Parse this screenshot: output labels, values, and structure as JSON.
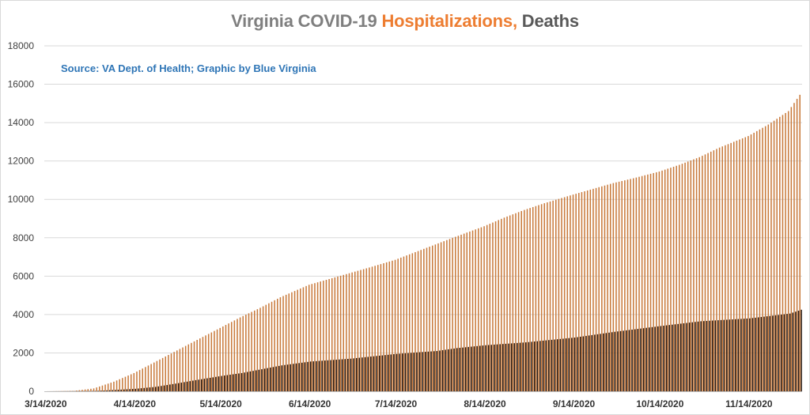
{
  "chart_data": {
    "type": "bar",
    "title_parts": [
      {
        "text": "Virginia COVID-19 ",
        "color": "#7f7f7f"
      },
      {
        "text": "Hospitalizations, ",
        "color": "#ed7d31"
      },
      {
        "text": "Deaths",
        "color": "#595959"
      }
    ],
    "source": "Source: VA Dept. of Health; Graphic by Blue Virginia",
    "source_color": "#2e75b6",
    "xlabel": "",
    "ylabel": "",
    "ylim": [
      0,
      18000
    ],
    "yticks": [
      0,
      2000,
      4000,
      6000,
      8000,
      10000,
      12000,
      14000,
      16000,
      18000
    ],
    "xtick_labels": [
      "3/14/2020",
      "4/14/2020",
      "5/14/2020",
      "6/14/2020",
      "7/14/2020",
      "8/14/2020",
      "9/14/2020",
      "10/14/2020",
      "11/14/2020"
    ],
    "x_start": "3/14/2020",
    "x_end": "12/2/2020",
    "grid": true,
    "series": [
      {
        "name": "Hospitalizations",
        "color": "#c8793a",
        "points": [
          [
            "3/14/2020",
            0
          ],
          [
            "3/24/2020",
            20
          ],
          [
            "3/31/2020",
            150
          ],
          [
            "4/7/2020",
            500
          ],
          [
            "4/14/2020",
            950
          ],
          [
            "4/21/2020",
            1500
          ],
          [
            "4/28/2020",
            2050
          ],
          [
            "5/5/2020",
            2600
          ],
          [
            "5/14/2020",
            3300
          ],
          [
            "5/21/2020",
            3850
          ],
          [
            "5/28/2020",
            4350
          ],
          [
            "6/4/2020",
            4900
          ],
          [
            "6/14/2020",
            5550
          ],
          [
            "6/21/2020",
            5850
          ],
          [
            "6/28/2020",
            6150
          ],
          [
            "7/5/2020",
            6450
          ],
          [
            "7/14/2020",
            6850
          ],
          [
            "7/21/2020",
            7250
          ],
          [
            "7/28/2020",
            7650
          ],
          [
            "8/4/2020",
            8050
          ],
          [
            "8/14/2020",
            8600
          ],
          [
            "8/21/2020",
            9050
          ],
          [
            "8/28/2020",
            9450
          ],
          [
            "9/4/2020",
            9800
          ],
          [
            "9/14/2020",
            10250
          ],
          [
            "9/21/2020",
            10550
          ],
          [
            "9/28/2020",
            10850
          ],
          [
            "10/5/2020",
            11100
          ],
          [
            "10/14/2020",
            11450
          ],
          [
            "10/21/2020",
            11800
          ],
          [
            "10/28/2020",
            12200
          ],
          [
            "11/4/2020",
            12700
          ],
          [
            "11/14/2020",
            13300
          ],
          [
            "11/21/2020",
            13900
          ],
          [
            "11/28/2020",
            14600
          ],
          [
            "12/2/2020",
            15450
          ]
        ]
      },
      {
        "name": "Deaths",
        "color": "#2a1a12",
        "points": [
          [
            "3/14/2020",
            0
          ],
          [
            "3/31/2020",
            20
          ],
          [
            "4/7/2020",
            70
          ],
          [
            "4/14/2020",
            130
          ],
          [
            "4/21/2020",
            230
          ],
          [
            "4/28/2020",
            400
          ],
          [
            "5/5/2020",
            580
          ],
          [
            "5/14/2020",
            800
          ],
          [
            "5/21/2020",
            950
          ],
          [
            "5/28/2020",
            1150
          ],
          [
            "6/4/2020",
            1350
          ],
          [
            "6/14/2020",
            1550
          ],
          [
            "6/28/2020",
            1700
          ],
          [
            "7/14/2020",
            1950
          ],
          [
            "7/28/2020",
            2100
          ],
          [
            "8/4/2020",
            2250
          ],
          [
            "8/14/2020",
            2400
          ],
          [
            "8/28/2020",
            2550
          ],
          [
            "9/14/2020",
            2800
          ],
          [
            "9/28/2020",
            3100
          ],
          [
            "10/14/2020",
            3400
          ],
          [
            "10/28/2020",
            3650
          ],
          [
            "11/14/2020",
            3800
          ],
          [
            "11/28/2020",
            4050
          ],
          [
            "12/2/2020",
            4250
          ]
        ]
      }
    ]
  }
}
